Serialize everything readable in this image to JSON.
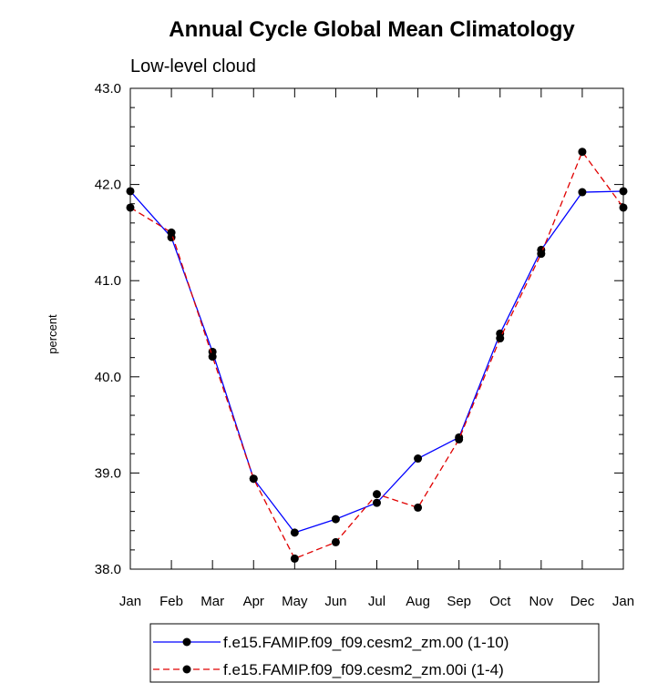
{
  "chart_data": {
    "type": "line",
    "title": "Annual Cycle Global Mean Climatology",
    "subtitle": "Low-level cloud",
    "ylabel": "percent",
    "xlabel": "",
    "categories": [
      "Jan",
      "Feb",
      "Mar",
      "Apr",
      "May",
      "Jun",
      "Jul",
      "Aug",
      "Sep",
      "Oct",
      "Nov",
      "Dec",
      "Jan"
    ],
    "ylim": [
      38.0,
      43.0
    ],
    "yticks": [
      "38.0",
      "39.0",
      "40.0",
      "41.0",
      "42.0",
      "43.0"
    ],
    "series": [
      {
        "name": "f.e15.FAMIP.f09_f09.cesm2_zm.00 (1-10)",
        "color": "#0000ff",
        "dash": "solid",
        "marker": "filled-circle",
        "values": [
          41.93,
          41.45,
          40.26,
          38.94,
          38.38,
          38.52,
          38.69,
          39.15,
          39.37,
          40.45,
          41.32,
          41.92,
          41.93
        ]
      },
      {
        "name": "f.e15.FAMIP.f09_f09.cesm2_zm.00i (1-4)",
        "color": "#e00000",
        "dash": "dashed",
        "marker": "filled-circle",
        "values": [
          41.76,
          41.5,
          40.21,
          38.94,
          38.11,
          38.28,
          38.78,
          38.64,
          39.35,
          40.4,
          41.28,
          42.34,
          41.76
        ]
      }
    ],
    "grid": false,
    "legend_position": "bottom-center"
  }
}
